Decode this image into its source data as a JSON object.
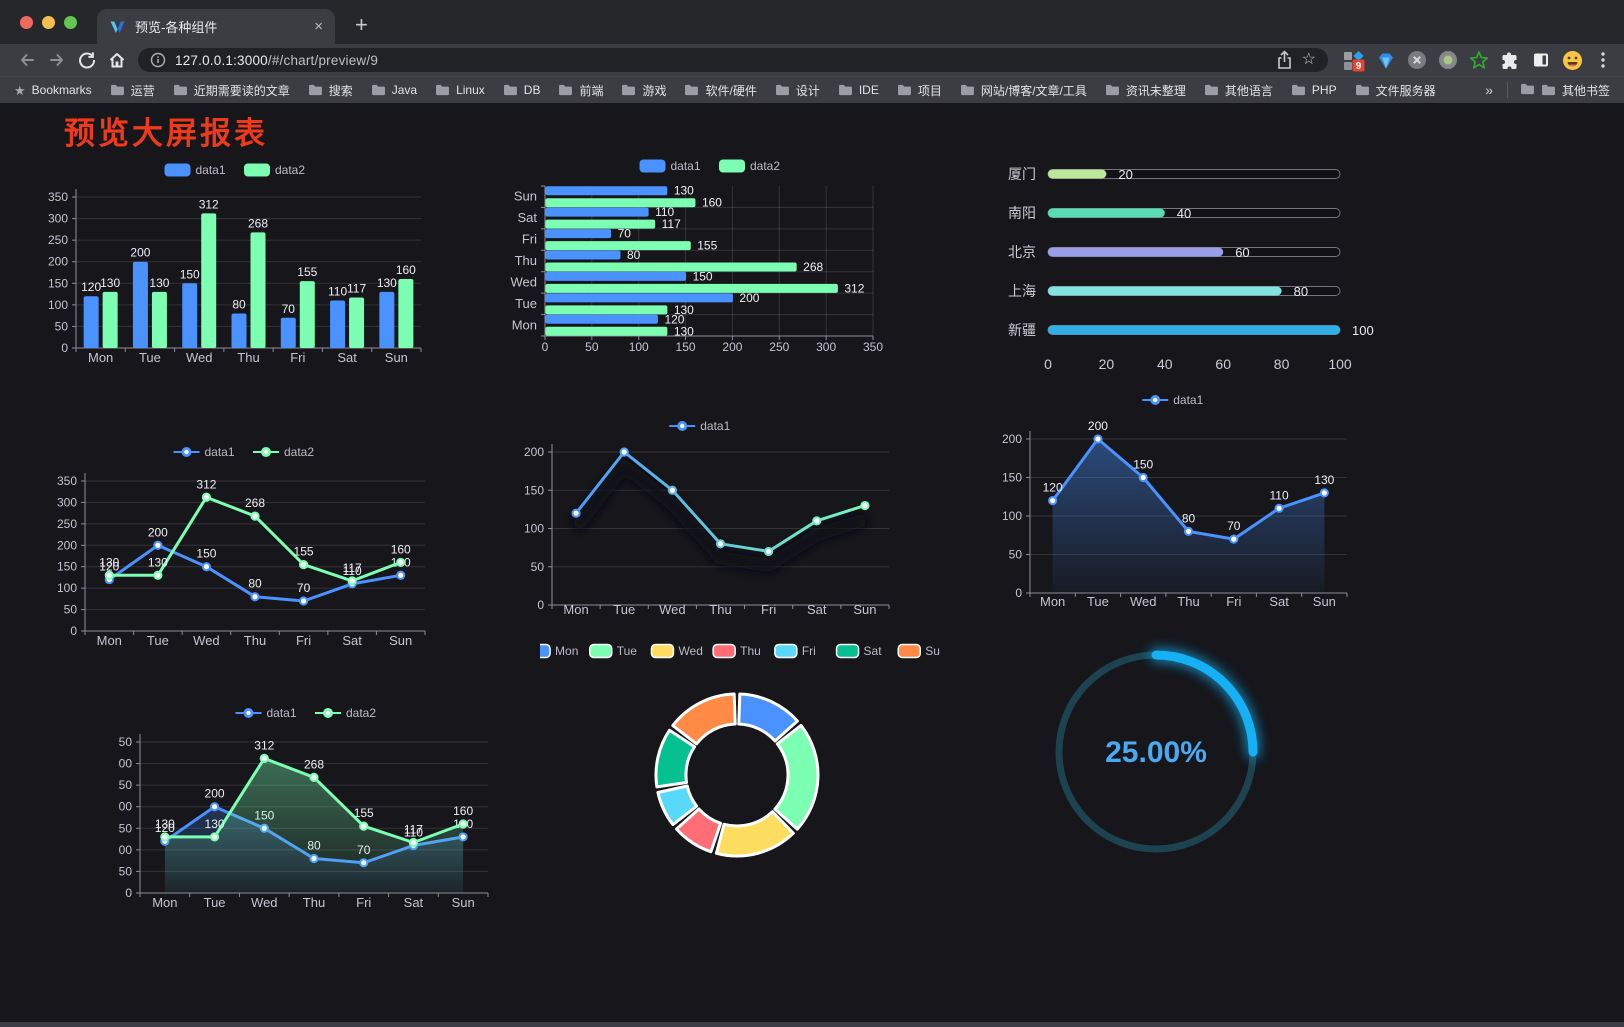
{
  "browser": {
    "tab_title": "预览-各种组件",
    "close_label": "×",
    "new_tab_label": "+",
    "url": {
      "host": "127.0.0.1:3000",
      "path": "/#/chart/preview/9"
    },
    "extension_badge": "9",
    "bookmarks_bar": {
      "bookmarks_label": "Bookmarks",
      "folders": [
        "运营",
        "近期需要读的文章",
        "搜索",
        "Java",
        "Linux",
        "DB",
        "前端",
        "游戏",
        "软件/硬件",
        "设计",
        "IDE",
        "项目",
        "网站/博客/文章/工具",
        "资讯未整理",
        "其他语言",
        "PHP",
        "文件服务器"
      ],
      "overflow_chevron": "»",
      "other_bookmarks": "其他书签"
    }
  },
  "page": {
    "title": "预览大屏报表",
    "title_color": "#ee3a1c"
  },
  "chart_data": [
    {
      "id": "grouped-bar",
      "type": "bar",
      "categories": [
        "Mon",
        "Tue",
        "Wed",
        "Thu",
        "Fri",
        "Sat",
        "Sun"
      ],
      "series": [
        {
          "name": "data1",
          "color": "#4992ff",
          "values": [
            120,
            200,
            150,
            80,
            70,
            110,
            130
          ]
        },
        {
          "name": "data2",
          "color": "#7cffb2",
          "values": [
            130,
            130,
            312,
            268,
            155,
            117,
            160
          ]
        }
      ],
      "ylim": [
        0,
        350
      ],
      "ytick": 50,
      "legend_position": "top",
      "grid": true
    },
    {
      "id": "horizontal-bar",
      "type": "bar-horizontal",
      "categories": [
        "Mon",
        "Tue",
        "Wed",
        "Thu",
        "Fri",
        "Sat",
        "Sun"
      ],
      "series": [
        {
          "name": "data1",
          "color": "#4992ff",
          "values": [
            120,
            200,
            150,
            80,
            70,
            110,
            130
          ]
        },
        {
          "name": "data2",
          "color": "#7cffb2",
          "values": [
            130,
            130,
            312,
            268,
            155,
            117,
            160
          ]
        }
      ],
      "xlim": [
        0,
        350
      ],
      "xtick": 50,
      "legend_position": "top",
      "grid": true
    },
    {
      "id": "city-progress",
      "type": "progress",
      "items": [
        {
          "label": "厦门",
          "value": 20,
          "color": "#bde79a"
        },
        {
          "label": "南阳",
          "value": 40,
          "color": "#58ddb2"
        },
        {
          "label": "北京",
          "value": 60,
          "color": "#999ee9"
        },
        {
          "label": "上海",
          "value": 80,
          "color": "#83e3e0"
        },
        {
          "label": "新疆",
          "value": 100,
          "color": "#2fb1e8"
        }
      ],
      "xlim": [
        0,
        100
      ],
      "axis_ticks": [
        0,
        20,
        40,
        60,
        80,
        100
      ]
    },
    {
      "id": "line-two-series",
      "type": "line",
      "categories": [
        "Mon",
        "Tue",
        "Wed",
        "Thu",
        "Fri",
        "Sat",
        "Sun"
      ],
      "series": [
        {
          "name": "data1",
          "color": "#4992ff",
          "values": [
            120,
            200,
            150,
            80,
            70,
            110,
            130
          ]
        },
        {
          "name": "data2",
          "color": "#7cffb2",
          "values": [
            130,
            130,
            312,
            268,
            155,
            117,
            160
          ]
        }
      ],
      "labels": true,
      "ylim": [
        0,
        350
      ],
      "ytick": 50,
      "legend_position": "top"
    },
    {
      "id": "line-gradient",
      "type": "line",
      "categories": [
        "Mon",
        "Tue",
        "Wed",
        "Thu",
        "Fri",
        "Sat",
        "Sun"
      ],
      "series": [
        {
          "name": "data1",
          "gradient": [
            "#4992ff",
            "#7cffb2"
          ],
          "shadow": true,
          "values": [
            120,
            200,
            150,
            80,
            70,
            110,
            130
          ]
        }
      ],
      "labels": false,
      "ylim": [
        0,
        200
      ],
      "ytick": 50,
      "legend_position": "top"
    },
    {
      "id": "line-area",
      "type": "line",
      "categories": [
        "Mon",
        "Tue",
        "Wed",
        "Thu",
        "Fri",
        "Sat",
        "Sun"
      ],
      "series": [
        {
          "name": "data1",
          "color": "#4992ff",
          "area": true,
          "values": [
            120,
            200,
            150,
            80,
            70,
            110,
            130
          ]
        }
      ],
      "labels": true,
      "ylim": [
        0,
        200
      ],
      "ytick": 50,
      "legend_position": "top"
    },
    {
      "id": "area-two-series",
      "type": "line",
      "categories": [
        "Mon",
        "Tue",
        "Wed",
        "Thu",
        "Fri",
        "Sat",
        "Sun"
      ],
      "series": [
        {
          "name": "data1",
          "color": "#4992ff",
          "area": true,
          "values": [
            120,
            200,
            150,
            80,
            70,
            110,
            130
          ]
        },
        {
          "name": "data2",
          "color": "#7cffb2",
          "area": true,
          "values": [
            130,
            130,
            312,
            268,
            155,
            117,
            160
          ]
        }
      ],
      "labels": true,
      "ylim": [
        0,
        350
      ],
      "ytick": 50,
      "legend_position": "top"
    },
    {
      "id": "donut",
      "type": "pie",
      "categories": [
        "Mon",
        "Tue",
        "Wed",
        "Thu",
        "Fri",
        "Sat",
        "Sun"
      ],
      "values": [
        120,
        200,
        150,
        80,
        70,
        110,
        130
      ],
      "colors": [
        "#4992ff",
        "#7cffb2",
        "#fddd60",
        "#ff6e76",
        "#58d9f9",
        "#05c091",
        "#ff8a45"
      ],
      "inner_radius_ratio": 0.63,
      "legend_position": "top"
    },
    {
      "id": "gauge",
      "type": "gauge",
      "value": 25,
      "label": "25.00%",
      "arc_color": "#16b1f4",
      "track_color": "#1d4350",
      "text_color": "#4aa9f1"
    }
  ]
}
